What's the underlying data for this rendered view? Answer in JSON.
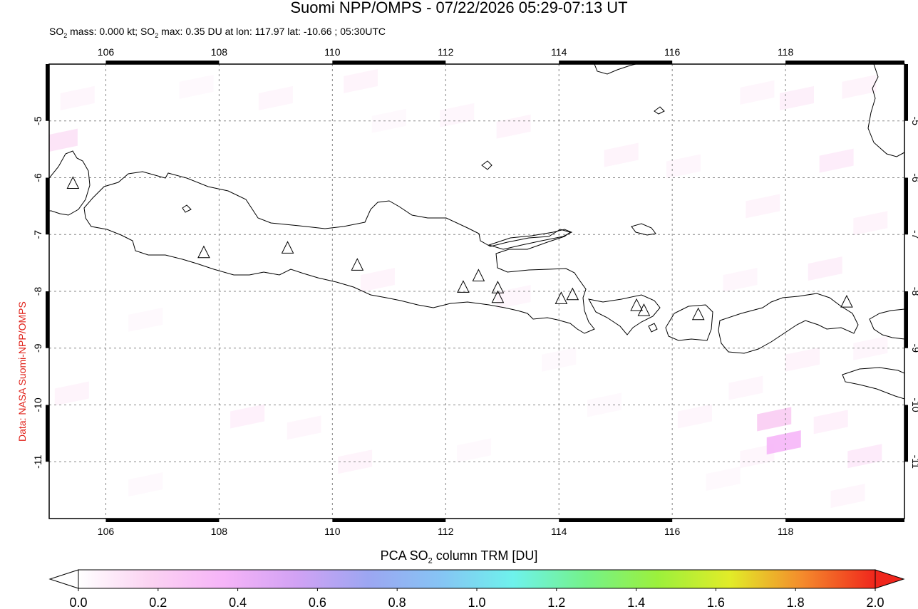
{
  "header": {
    "title": "Suomi NPP/OMPS - 07/22/2026 05:29-07:13 UT",
    "subtitle_parts": [
      "SO",
      "2",
      " mass: 0.000 kt; SO",
      "2",
      " max: 0.35 DU at lon: 117.97 lat: -10.66 ; 05:30UTC"
    ]
  },
  "credit": "Data: NASA Suomi-NPP/OMPS",
  "map": {
    "lon_range": [
      105,
      120.1
    ],
    "lat_range": [
      -12,
      -4
    ],
    "lon_ticks": [
      106,
      108,
      110,
      112,
      114,
      116,
      118
    ],
    "lon_tick_labels": [
      "106",
      "108",
      "110",
      "112",
      "114",
      "116",
      "118"
    ],
    "lat_ticks": [
      -5,
      -6,
      -7,
      -8,
      -9,
      -10,
      -11
    ],
    "lat_tick_labels": [
      "-5",
      "-6",
      "-7",
      "-8",
      "-9",
      "-10",
      "-11"
    ],
    "grid": "dashed",
    "volcanoes": [
      {
        "lon": 105.42,
        "lat": -6.1
      },
      {
        "lon": 107.73,
        "lat": -7.32
      },
      {
        "lon": 109.21,
        "lat": -7.24
      },
      {
        "lon": 110.44,
        "lat": -7.54
      },
      {
        "lon": 112.31,
        "lat": -7.93
      },
      {
        "lon": 112.58,
        "lat": -7.73
      },
      {
        "lon": 112.92,
        "lat": -7.94
      },
      {
        "lon": 112.92,
        "lat": -8.11
      },
      {
        "lon": 114.04,
        "lat": -8.13
      },
      {
        "lon": 114.24,
        "lat": -8.06
      },
      {
        "lon": 115.37,
        "lat": -8.25
      },
      {
        "lon": 115.5,
        "lat": -8.34
      },
      {
        "lon": 116.46,
        "lat": -8.41
      },
      {
        "lon": 119.08,
        "lat": -8.19
      }
    ],
    "so2_cells": [
      {
        "lon": 105.2,
        "lat": -5.35,
        "du": 0.12
      },
      {
        "lon": 105.5,
        "lat": -4.6,
        "du": 0.04
      },
      {
        "lon": 107.6,
        "lat": -4.4,
        "du": 0.03
      },
      {
        "lon": 109.0,
        "lat": -4.6,
        "du": 0.04
      },
      {
        "lon": 110.5,
        "lat": -4.3,
        "du": 0.05
      },
      {
        "lon": 111.0,
        "lat": -5.0,
        "du": 0.03
      },
      {
        "lon": 112.2,
        "lat": -4.9,
        "du": 0.04
      },
      {
        "lon": 113.2,
        "lat": -5.1,
        "du": 0.05
      },
      {
        "lon": 115.1,
        "lat": -5.6,
        "du": 0.05
      },
      {
        "lon": 116.2,
        "lat": -5.8,
        "du": 0.04
      },
      {
        "lon": 117.5,
        "lat": -4.5,
        "du": 0.04
      },
      {
        "lon": 118.2,
        "lat": -4.6,
        "du": 0.07
      },
      {
        "lon": 119.3,
        "lat": -4.4,
        "du": 0.05
      },
      {
        "lon": 118.9,
        "lat": -5.7,
        "du": 0.08
      },
      {
        "lon": 117.6,
        "lat": -6.5,
        "du": 0.05
      },
      {
        "lon": 119.5,
        "lat": -6.8,
        "du": 0.05
      },
      {
        "lon": 118.7,
        "lat": -7.6,
        "du": 0.07
      },
      {
        "lon": 117.2,
        "lat": -7.8,
        "du": 0.04
      },
      {
        "lon": 110.8,
        "lat": -7.8,
        "du": 0.05
      },
      {
        "lon": 113.2,
        "lat": -8.1,
        "du": 0.04
      },
      {
        "lon": 106.7,
        "lat": -8.5,
        "du": 0.03
      },
      {
        "lon": 105.4,
        "lat": -9.8,
        "du": 0.05
      },
      {
        "lon": 108.5,
        "lat": -10.2,
        "du": 0.06
      },
      {
        "lon": 109.5,
        "lat": -10.4,
        "du": 0.04
      },
      {
        "lon": 110.4,
        "lat": -11.0,
        "du": 0.05
      },
      {
        "lon": 106.7,
        "lat": -11.4,
        "du": 0.03
      },
      {
        "lon": 112.5,
        "lat": -10.8,
        "du": 0.03
      },
      {
        "lon": 114.8,
        "lat": -10.0,
        "du": 0.03
      },
      {
        "lon": 116.4,
        "lat": -10.2,
        "du": 0.04
      },
      {
        "lon": 117.3,
        "lat": -9.7,
        "du": 0.04
      },
      {
        "lon": 118.3,
        "lat": -9.2,
        "du": 0.05
      },
      {
        "lon": 119.5,
        "lat": -9.0,
        "du": 0.04
      },
      {
        "lon": 117.5,
        "lat": -10.9,
        "du": 0.04
      },
      {
        "lon": 117.8,
        "lat": -10.25,
        "du": 0.22
      },
      {
        "lon": 117.97,
        "lat": -10.66,
        "du": 0.35
      },
      {
        "lon": 118.8,
        "lat": -10.3,
        "du": 0.06
      },
      {
        "lon": 119.4,
        "lat": -10.9,
        "du": 0.09
      },
      {
        "lon": 119.1,
        "lat": -11.6,
        "du": 0.04
      },
      {
        "lon": 116.9,
        "lat": -11.3,
        "du": 0.03
      },
      {
        "lon": 114.0,
        "lat": -9.2,
        "du": 0.03
      }
    ]
  },
  "colorbar": {
    "title_parts": [
      "PCA SO",
      "2",
      " column TRM [DU]"
    ],
    "min": 0.0,
    "max": 2.0,
    "tick_values": [
      0.0,
      0.2,
      0.4,
      0.6,
      0.8,
      1.0,
      1.2,
      1.4,
      1.6,
      1.8,
      2.0
    ],
    "tick_labels": [
      "0.0",
      "0.2",
      "0.4",
      "0.6",
      "0.8",
      "1.0",
      "1.2",
      "1.4",
      "1.6",
      "1.8",
      "2.0"
    ],
    "colors": [
      "#ffffff",
      "#fbd2f2",
      "#f6b4f8",
      "#d2a2f4",
      "#9ca6f2",
      "#86c4f4",
      "#6ef2ec",
      "#74f28a",
      "#9cf03c",
      "#e2ec28",
      "#f48a2c",
      "#f0261c"
    ],
    "under_color": "#ffffff",
    "over_color": "#f0261c"
  }
}
